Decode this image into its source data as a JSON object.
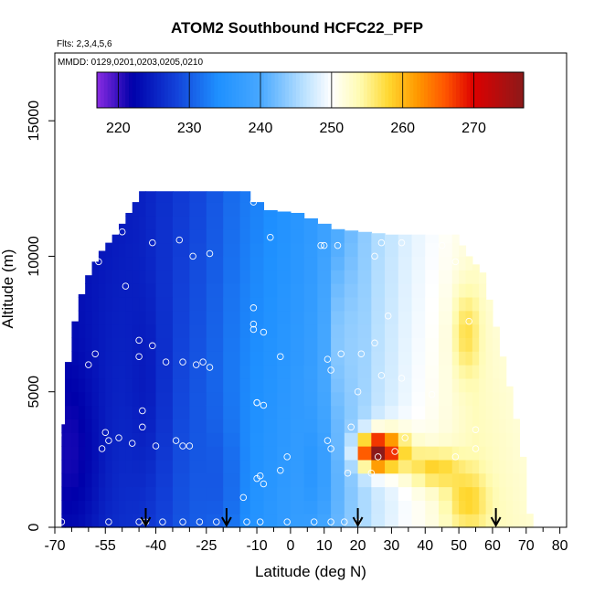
{
  "chart_data": {
    "type": "heatmap",
    "title": "ATOM2 Southbound HCFC22_PFP",
    "flights_note": "Flts: 2,3,4,5,6",
    "dates_note": "MMDD: 0129,0201,0203,0205,0210",
    "xlabel": "Latitude (deg N)",
    "ylabel": "Altitude (m)",
    "xlim": [
      -70,
      82
    ],
    "ylim": [
      0,
      17500
    ],
    "x_ticks": [
      -70,
      -55,
      -40,
      -25,
      -10,
      0,
      10,
      20,
      30,
      40,
      50,
      60,
      70,
      80
    ],
    "x_tick_labels": [
      "-70",
      "-55",
      "-40",
      "-25",
      "-10",
      "0",
      "10",
      "20",
      "30",
      "40",
      "50",
      "60",
      "70",
      "80"
    ],
    "x_minor_ticks": [
      -65,
      -60,
      -50,
      -45,
      -35,
      -30,
      -20,
      -15,
      -5,
      5,
      15,
      25,
      35,
      45,
      55,
      65,
      75
    ],
    "y_ticks": [
      0,
      5000,
      10000,
      15000
    ],
    "y_tick_labels": [
      "0",
      "5000",
      "10000",
      "15000"
    ],
    "colorbar": {
      "min": 217,
      "max": 277,
      "ticks": [
        220,
        230,
        240,
        250,
        260,
        270
      ],
      "tick_labels": [
        "220",
        "230",
        "240",
        "250",
        "260",
        "270"
      ],
      "colors": [
        {
          "v": 217,
          "c": "#8a2be2"
        },
        {
          "v": 222,
          "c": "#0000aa"
        },
        {
          "v": 228,
          "c": "#1240d8"
        },
        {
          "v": 234,
          "c": "#1e90ff"
        },
        {
          "v": 240,
          "c": "#48a8ff"
        },
        {
          "v": 246,
          "c": "#b8e0ff"
        },
        {
          "v": 250,
          "c": "#ffffff"
        },
        {
          "v": 254,
          "c": "#fffbb0"
        },
        {
          "v": 258,
          "c": "#ffd830"
        },
        {
          "v": 262,
          "c": "#ff9900"
        },
        {
          "v": 266,
          "c": "#ff5500"
        },
        {
          "v": 270,
          "c": "#dd0000"
        },
        {
          "v": 277,
          "c": "#8b1a1a"
        }
      ]
    },
    "field_columns": [
      {
        "lat": -68,
        "top": 3800
      },
      {
        "lat": -67,
        "top": 6100
      },
      {
        "lat": -65,
        "top": 7600
      },
      {
        "lat": -63,
        "top": 8600
      },
      {
        "lat": -61,
        "top": 9300
      },
      {
        "lat": -59,
        "top": 9800
      },
      {
        "lat": -57,
        "top": 10200
      },
      {
        "lat": -55,
        "top": 10500
      },
      {
        "lat": -53,
        "top": 10800
      },
      {
        "lat": -51,
        "top": 11200
      },
      {
        "lat": -49,
        "top": 11600
      },
      {
        "lat": -47,
        "top": 12000
      },
      {
        "lat": -45,
        "top": 12400
      },
      {
        "lat": -43,
        "top": 12400
      },
      {
        "lat": -40,
        "top": 12400
      },
      {
        "lat": -35,
        "top": 12400
      },
      {
        "lat": -30,
        "top": 12400
      },
      {
        "lat": -25,
        "top": 12400
      },
      {
        "lat": -20,
        "top": 12400
      },
      {
        "lat": -15,
        "top": 12400
      },
      {
        "lat": -12,
        "top": 12000
      },
      {
        "lat": -8,
        "top": 11700
      },
      {
        "lat": -4,
        "top": 11650
      },
      {
        "lat": 0,
        "top": 11600
      },
      {
        "lat": 4,
        "top": 11400
      },
      {
        "lat": 8,
        "top": 11200
      },
      {
        "lat": 12,
        "top": 11000
      },
      {
        "lat": 16,
        "top": 10950
      },
      {
        "lat": 20,
        "top": 10900
      },
      {
        "lat": 24,
        "top": 10850
      },
      {
        "lat": 28,
        "top": 10800
      },
      {
        "lat": 32,
        "top": 10800
      },
      {
        "lat": 36,
        "top": 10800
      },
      {
        "lat": 40,
        "top": 10800
      },
      {
        "lat": 44,
        "top": 10800
      },
      {
        "lat": 48,
        "top": 10800
      },
      {
        "lat": 50,
        "top": 10400
      },
      {
        "lat": 52,
        "top": 10000
      },
      {
        "lat": 54,
        "top": 9700
      },
      {
        "lat": 56,
        "top": 9400
      },
      {
        "lat": 58,
        "top": 8400
      },
      {
        "lat": 60,
        "top": 7400
      },
      {
        "lat": 62,
        "top": 6300
      },
      {
        "lat": 64,
        "top": 5200
      },
      {
        "lat": 66,
        "top": 4000
      },
      {
        "lat": 68,
        "top": 2600
      },
      {
        "lat": 70,
        "top": 500
      }
    ],
    "field_stops": [
      {
        "lat": -70,
        "v": 224
      },
      {
        "lat": -55,
        "v": 226
      },
      {
        "lat": -45,
        "v": 227
      },
      {
        "lat": -35,
        "v": 229
      },
      {
        "lat": -25,
        "v": 231
      },
      {
        "lat": -15,
        "v": 234
      },
      {
        "lat": -5,
        "v": 236
      },
      {
        "lat": 5,
        "v": 238
      },
      {
        "lat": 15,
        "v": 242
      },
      {
        "lat": 25,
        "v": 247
      },
      {
        "lat": 35,
        "v": 250
      },
      {
        "lat": 45,
        "v": 252
      },
      {
        "lat": 55,
        "v": 254
      },
      {
        "lat": 65,
        "v": 253
      },
      {
        "lat": 75,
        "v": 252
      }
    ],
    "field_anomalies": [
      {
        "lat": 25,
        "alt": 2800,
        "rlat": 5,
        "ralt": 600,
        "dv": 24
      },
      {
        "lat": 29,
        "alt": 2900,
        "rlat": 7,
        "ralt": 800,
        "dv": 11
      },
      {
        "lat": 42,
        "alt": 2200,
        "rlat": 8,
        "ralt": 700,
        "dv": 7
      },
      {
        "lat": 52,
        "alt": 1000,
        "rlat": 6,
        "ralt": 1000,
        "dv": 5
      },
      {
        "lat": 52,
        "alt": 7200,
        "rlat": 4,
        "ralt": 1600,
        "dv": 5
      },
      {
        "lat": -64,
        "alt": 2500,
        "rlat": 8,
        "ralt": 3500,
        "dv": -3
      },
      {
        "lat": -42,
        "alt": 5000,
        "rlat": 6,
        "ralt": 4000,
        "dv": -2
      },
      {
        "lat": -20,
        "alt": 1500,
        "rlat": 6,
        "ralt": 2500,
        "dv": -2
      },
      {
        "lat": 15,
        "alt": 7000,
        "rlat": 4,
        "ralt": 3000,
        "dv": 3
      },
      {
        "lat": 8,
        "alt": 2000,
        "rlat": 4,
        "ralt": 2000,
        "dv": -3
      }
    ],
    "samples": [
      {
        "lat": -48,
        "alt": 12300
      },
      {
        "lat": -50,
        "alt": 10900
      },
      {
        "lat": -41,
        "alt": 10500
      },
      {
        "lat": -33,
        "alt": 10600
      },
      {
        "lat": -29,
        "alt": 10000
      },
      {
        "lat": -24,
        "alt": 10100
      },
      {
        "lat": -57,
        "alt": 9800
      },
      {
        "lat": -49,
        "alt": 8900
      },
      {
        "lat": -11,
        "alt": 12000
      },
      {
        "lat": -6,
        "alt": 10700
      },
      {
        "lat": 9,
        "alt": 10400
      },
      {
        "lat": 10,
        "alt": 10400
      },
      {
        "lat": 14,
        "alt": 10400
      },
      {
        "lat": 27,
        "alt": 10500
      },
      {
        "lat": 33,
        "alt": 10500
      },
      {
        "lat": 45,
        "alt": 10400
      },
      {
        "lat": 25,
        "alt": 10000
      },
      {
        "lat": 49,
        "alt": 9800
      },
      {
        "lat": -11,
        "alt": 8100
      },
      {
        "lat": -11,
        "alt": 7500
      },
      {
        "lat": -11,
        "alt": 7300
      },
      {
        "lat": -8,
        "alt": 7200
      },
      {
        "lat": 29,
        "alt": 7800
      },
      {
        "lat": 53,
        "alt": 7600
      },
      {
        "lat": -45,
        "alt": 6900
      },
      {
        "lat": -41,
        "alt": 6700
      },
      {
        "lat": -45,
        "alt": 6300
      },
      {
        "lat": -58,
        "alt": 6400
      },
      {
        "lat": -60,
        "alt": 6000
      },
      {
        "lat": -37,
        "alt": 6100
      },
      {
        "lat": -32,
        "alt": 6100
      },
      {
        "lat": -28,
        "alt": 6000
      },
      {
        "lat": -26,
        "alt": 6100
      },
      {
        "lat": -24,
        "alt": 5900
      },
      {
        "lat": -3,
        "alt": 6300
      },
      {
        "lat": 11,
        "alt": 6200
      },
      {
        "lat": 15,
        "alt": 6400
      },
      {
        "lat": 21,
        "alt": 6400
      },
      {
        "lat": 25,
        "alt": 6800
      },
      {
        "lat": -69,
        "alt": 5700
      },
      {
        "lat": 12,
        "alt": 5800
      },
      {
        "lat": 27,
        "alt": 5600
      },
      {
        "lat": 33,
        "alt": 5500
      },
      {
        "lat": 20,
        "alt": 5000
      },
      {
        "lat": 42,
        "alt": 4900
      },
      {
        "lat": -10,
        "alt": 4600
      },
      {
        "lat": -10,
        "alt": 4600
      },
      {
        "lat": -8,
        "alt": 4500
      },
      {
        "lat": -44,
        "alt": 4300
      },
      {
        "lat": -44,
        "alt": 3700
      },
      {
        "lat": -55,
        "alt": 3500
      },
      {
        "lat": -54,
        "alt": 3200
      },
      {
        "lat": -51,
        "alt": 3300
      },
      {
        "lat": -56,
        "alt": 2900
      },
      {
        "lat": -47,
        "alt": 3100
      },
      {
        "lat": -40,
        "alt": 3000
      },
      {
        "lat": -34,
        "alt": 3200
      },
      {
        "lat": -32,
        "alt": 3000
      },
      {
        "lat": -30,
        "alt": 3000
      },
      {
        "lat": -69,
        "alt": 3400
      },
      {
        "lat": 11,
        "alt": 3200
      },
      {
        "lat": 12,
        "alt": 2900
      },
      {
        "lat": 18,
        "alt": 3700
      },
      {
        "lat": 34,
        "alt": 3300
      },
      {
        "lat": 31,
        "alt": 2800
      },
      {
        "lat": 55,
        "alt": 3600
      },
      {
        "lat": 55,
        "alt": 2900
      },
      {
        "lat": 49,
        "alt": 2600
      },
      {
        "lat": 26,
        "alt": 2600
      },
      {
        "lat": -1,
        "alt": 2600
      },
      {
        "lat": -9,
        "alt": 1900
      },
      {
        "lat": -10,
        "alt": 1800
      },
      {
        "lat": -3,
        "alt": 2100
      },
      {
        "lat": 17,
        "alt": 2000
      },
      {
        "lat": 24,
        "alt": 2000
      },
      {
        "lat": -14,
        "alt": 1100
      },
      {
        "lat": -8,
        "alt": 1600
      },
      {
        "lat": -68,
        "alt": 200
      },
      {
        "lat": -54,
        "alt": 200
      },
      {
        "lat": -45,
        "alt": 200
      },
      {
        "lat": -43,
        "alt": 200
      },
      {
        "lat": -38,
        "alt": 200
      },
      {
        "lat": -32,
        "alt": 200
      },
      {
        "lat": -27,
        "alt": 200
      },
      {
        "lat": -22,
        "alt": 200
      },
      {
        "lat": -13,
        "alt": 200
      },
      {
        "lat": -9,
        "alt": 200
      },
      {
        "lat": -1,
        "alt": 200
      },
      {
        "lat": 7,
        "alt": 200
      },
      {
        "lat": 12,
        "alt": 200
      },
      {
        "lat": 16,
        "alt": 200
      },
      {
        "lat": 20,
        "alt": 200
      }
    ],
    "arrows": [
      -43,
      -19,
      20,
      61
    ]
  }
}
